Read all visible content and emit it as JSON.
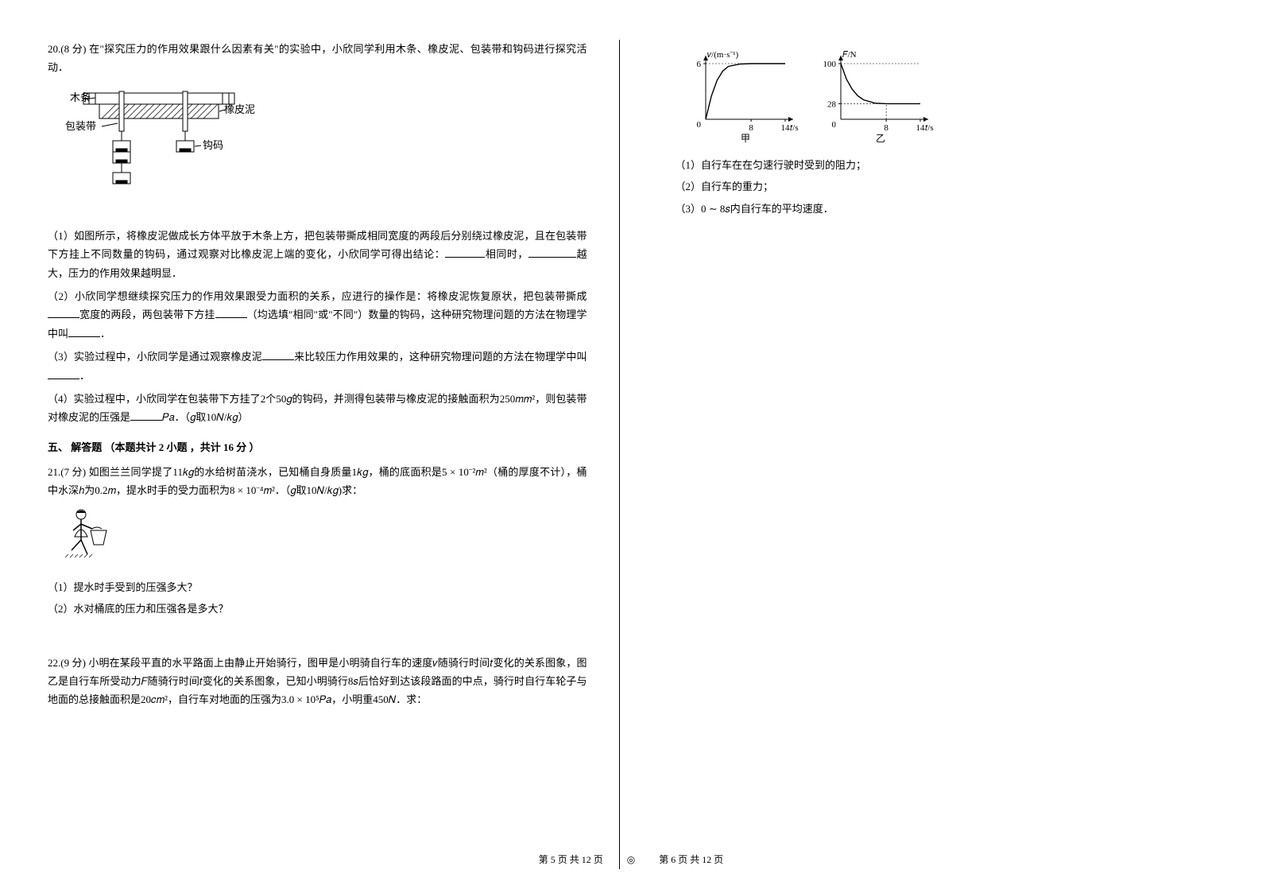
{
  "q20": {
    "number": "20.(8 分)",
    "stem": "在\"探究压力的作用效果跟什么因素有关\"的实验中，小欣同学利用木条、橡皮泥、包装带和钩码进行探究活动．",
    "fig": {
      "labels": {
        "wood": "木条",
        "putty": "橡皮泥",
        "tape": "包装带",
        "hook": "钩码"
      }
    },
    "p1": "（1）如图所示，将橡皮泥做成长方体平放于木条上方，把包装带撕成相同宽度的两段后分别绕过橡皮泥，且在包装带下方挂上不同数量的钩码，通过观察对比橡皮泥上端的变化，小欣同学可得出结论：",
    "p1_mid": "相同时，",
    "p1_end": "越大，压力的作用效果越明显．",
    "p2": "（2）小欣同学想继续探究压力的作用效果跟受力面积的关系，应进行的操作是：将橡皮泥恢复原状，把包装带撕成",
    "p2_mid": "宽度的两段，两包装带下方挂",
    "p2_end": "（均选填\"相同\"或\"不同\"）数量的钩码，这种研究物理问题的方法在物理学中叫",
    "p2_tail": "．",
    "p3": "（3）实验过程中，小欣同学是通过观察橡皮泥",
    "p3_end": "来比较压力作用效果的，这种研究物理问题的方法在物理学中叫",
    "p3_tail": "．",
    "p4": "（4）实验过程中，小欣同学在包装带下方挂了2个50𝑔的钩码，并测得包装带与橡皮泥的接触面积为250𝑚𝑚²，则包装带对橡皮泥的压强是",
    "p4_end": "𝑃𝑎．（𝑔取10𝑁/𝑘𝑔）"
  },
  "section5": "五、 解答题 （本题共计 2 小题 ，共计 16 分 ）",
  "q21": {
    "number": "21.(7 分)",
    "stem": "如图兰兰同学提了11𝑘𝑔的水给树苗浇水，已知桶自身质量1𝑘𝑔，桶的底面积是5 × 10⁻²𝑚²（桶的厚度不计），桶中水深ℎ为0.2𝑚，提水时手的受力面积为8 × 10⁻⁴𝑚²．（𝑔取10𝑁/𝑘𝑔)求：",
    "sub1": "（1）提水时手受到的压强多大？",
    "sub2": "（2）水对桶底的压力和压强各是多大？"
  },
  "q22": {
    "number": "22.(9 分)",
    "stem": "小明在某段平直的水平路面上由静止开始骑行，图甲是小明骑自行车的速度𝑣随骑行时间𝑡变化的关系图象，图乙是自行车所受动力𝐹随骑行时间𝑡变化的关系图象，已知小明骑行8𝑠后恰好到达该段路面的中点，骑行时自行车轮子与地面的总接触面积是20𝑐𝑚²，自行车对地面的压强为3.0 × 10⁵𝑃𝑎，小明重450𝑁．求：",
    "chart1": {
      "ylabel": "𝑣/(m·s⁻¹)",
      "xlabel": "𝑡/s",
      "ymax": 6,
      "yticks": [
        6
      ],
      "xticks": [
        8,
        14
      ],
      "caption": "甲",
      "curve_pts": [
        [
          0,
          0
        ],
        [
          1,
          2.5
        ],
        [
          2,
          4.2
        ],
        [
          3,
          5.2
        ],
        [
          4,
          5.7
        ],
        [
          6,
          5.95
        ],
        [
          8,
          6
        ],
        [
          14,
          6
        ]
      ],
      "axis_color": "#000"
    },
    "chart2": {
      "ylabel": "𝐹/N",
      "xlabel": "𝑡/s",
      "ymax": 100,
      "yticks": [
        100,
        28
      ],
      "xticks": [
        8,
        14
      ],
      "caption": "乙",
      "curve_pts": [
        [
          0,
          100
        ],
        [
          1,
          72
        ],
        [
          2,
          54
        ],
        [
          3,
          42
        ],
        [
          4,
          35
        ],
        [
          6,
          29
        ],
        [
          8,
          28
        ],
        [
          14,
          28
        ]
      ],
      "axis_color": "#000"
    },
    "sub1": "（1）自行车在在匀速行驶时受到的阻力；",
    "sub2": "（2）自行车的重力；",
    "sub3": "（3）0 ∼ 8𝑠内自行车的平均速度．"
  },
  "footer": {
    "left": "第 5 页 共 12 页",
    "right": "第 6 页 共 12 页",
    "icon": "◎"
  }
}
